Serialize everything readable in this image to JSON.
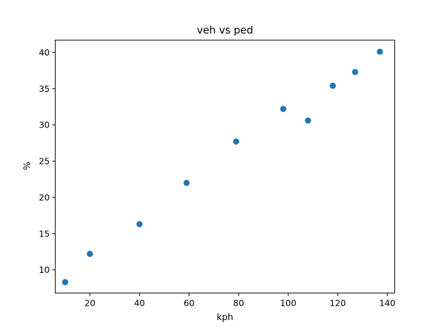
{
  "chart_data": {
    "type": "scatter",
    "title": "veh vs ped",
    "xlabel": "kph",
    "ylabel": "%",
    "xlim": [
      6,
      143
    ],
    "ylim": [
      6.8,
      41.7
    ],
    "xticks": [
      20,
      40,
      60,
      80,
      100,
      120,
      140
    ],
    "yticks": [
      10,
      15,
      20,
      25,
      30,
      35,
      40
    ],
    "marker_color": "#1f77b4",
    "grid": false,
    "x": [
      10,
      20,
      40,
      59,
      79,
      98,
      108,
      118,
      127,
      137
    ],
    "y": [
      8.3,
      12.2,
      16.3,
      22.0,
      27.7,
      32.2,
      30.6,
      35.4,
      37.3,
      40.1
    ]
  }
}
